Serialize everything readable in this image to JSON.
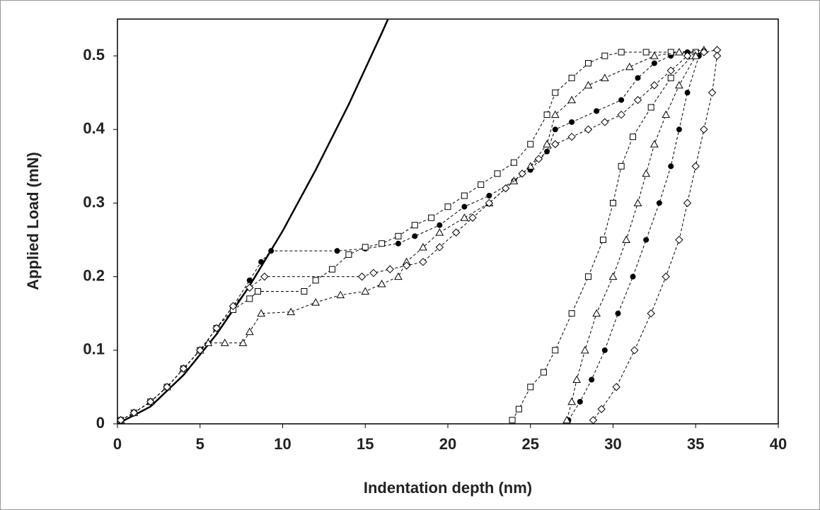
{
  "chart_data": {
    "type": "scatter",
    "xlabel": "Indentation depth (nm)",
    "ylabel": "Applied Load (mN)",
    "xlim": [
      0,
      40
    ],
    "xticks": [
      0,
      5,
      10,
      15,
      20,
      25,
      30,
      35,
      40
    ],
    "ylim": [
      0,
      0.55
    ],
    "yticks": [
      0,
      0.1,
      0.2,
      0.3,
      0.4,
      0.5
    ],
    "series": [
      {
        "color": "#000000",
        "line": "solid",
        "x": [
          0,
          2,
          4,
          6,
          8,
          10,
          12,
          14,
          16,
          16.4
        ],
        "values": [
          0,
          0.0234,
          0.0663,
          0.1218,
          0.1876,
          0.262,
          0.345,
          0.434,
          0.531,
          0.551
        ]
      },
      {
        "color": "#000000",
        "marker": "circle",
        "filled": true,
        "line": "dashed",
        "x": [
          0.2,
          1,
          2,
          3,
          4,
          5,
          6,
          7,
          8,
          8.7,
          9.3,
          13.3,
          15,
          17,
          18,
          19.5,
          21,
          22.5,
          24,
          25,
          26,
          26.5,
          27.5,
          29,
          30.5,
          31.5,
          32.5,
          33.5,
          34.5,
          35.5,
          35.2,
          34.5,
          34,
          33.5,
          32.8,
          32,
          31.2,
          30.3,
          29.5,
          28.7,
          28,
          27.3
        ],
        "values": [
          0.005,
          0.015,
          0.03,
          0.05,
          0.075,
          0.1,
          0.13,
          0.16,
          0.195,
          0.22,
          0.235,
          0.235,
          0.238,
          0.245,
          0.255,
          0.27,
          0.295,
          0.31,
          0.33,
          0.345,
          0.37,
          0.4,
          0.41,
          0.425,
          0.44,
          0.47,
          0.49,
          0.5,
          0.505,
          0.507,
          0.5,
          0.45,
          0.4,
          0.35,
          0.3,
          0.25,
          0.2,
          0.15,
          0.1,
          0.06,
          0.03,
          0.005
        ]
      },
      {
        "color": "#000000",
        "marker": "square",
        "filled": false,
        "line": "dashed",
        "x": [
          0.2,
          1,
          2,
          3,
          4,
          5,
          6,
          7,
          8,
          8.5,
          11.3,
          12,
          13,
          14,
          15,
          16,
          17,
          18,
          19,
          20,
          21,
          22,
          23,
          24,
          25,
          26,
          26.5,
          27.5,
          28.5,
          29.5,
          30.5,
          32,
          33.5,
          35,
          34.8,
          33.5,
          32.3,
          31.2,
          30.5,
          30,
          29.4,
          28.5,
          27.5,
          26.5,
          25.8,
          25,
          24.3,
          23.9
        ],
        "values": [
          0.005,
          0.015,
          0.03,
          0.05,
          0.075,
          0.1,
          0.13,
          0.155,
          0.17,
          0.18,
          0.18,
          0.195,
          0.21,
          0.23,
          0.24,
          0.245,
          0.255,
          0.27,
          0.28,
          0.295,
          0.31,
          0.325,
          0.34,
          0.355,
          0.38,
          0.42,
          0.45,
          0.47,
          0.49,
          0.5,
          0.505,
          0.505,
          0.505,
          0.505,
          0.5,
          0.47,
          0.43,
          0.39,
          0.35,
          0.3,
          0.25,
          0.2,
          0.15,
          0.1,
          0.07,
          0.05,
          0.02,
          0.005
        ]
      },
      {
        "color": "#000000",
        "marker": "triangle",
        "filled": false,
        "line": "dashed",
        "x": [
          0.2,
          1,
          2,
          3,
          4,
          5,
          5.5,
          6.5,
          7.6,
          8,
          8.7,
          10.5,
          12,
          13.5,
          15,
          16,
          17,
          17.5,
          18.5,
          19.5,
          21,
          22.5,
          24,
          25,
          26,
          26.5,
          27.5,
          28.5,
          29.5,
          31,
          32.5,
          34,
          35.5,
          35,
          34,
          33.2,
          32.5,
          32,
          31.5,
          30.8,
          30,
          29,
          28.3,
          27.8,
          27.5,
          27.2
        ],
        "values": [
          0.005,
          0.015,
          0.03,
          0.05,
          0.075,
          0.1,
          0.11,
          0.11,
          0.11,
          0.125,
          0.15,
          0.152,
          0.165,
          0.175,
          0.18,
          0.19,
          0.2,
          0.22,
          0.24,
          0.26,
          0.28,
          0.3,
          0.33,
          0.35,
          0.38,
          0.42,
          0.44,
          0.46,
          0.47,
          0.485,
          0.5,
          0.505,
          0.508,
          0.5,
          0.46,
          0.42,
          0.38,
          0.34,
          0.3,
          0.25,
          0.2,
          0.15,
          0.1,
          0.06,
          0.03,
          0.005
        ]
      },
      {
        "color": "#000000",
        "marker": "diamond",
        "filled": false,
        "line": "dashed",
        "x": [
          0.2,
          1,
          2,
          3,
          4,
          5,
          6,
          7,
          8,
          8.9,
          14.8,
          15.5,
          16.5,
          17.5,
          18.5,
          19.5,
          20.5,
          21.5,
          22.5,
          23.5,
          24.5,
          25.5,
          26.5,
          27.5,
          28.5,
          29.5,
          30.5,
          31.5,
          32.5,
          33.5,
          34.5,
          35.5,
          36.3,
          36.3,
          36,
          35.5,
          35,
          34.5,
          34,
          33.2,
          32.3,
          31.3,
          30.2,
          29.3,
          28.8
        ],
        "values": [
          0.005,
          0.015,
          0.03,
          0.05,
          0.075,
          0.1,
          0.13,
          0.16,
          0.185,
          0.2,
          0.2,
          0.205,
          0.21,
          0.215,
          0.22,
          0.24,
          0.26,
          0.28,
          0.3,
          0.32,
          0.34,
          0.36,
          0.38,
          0.39,
          0.4,
          0.41,
          0.42,
          0.44,
          0.46,
          0.48,
          0.5,
          0.505,
          0.508,
          0.5,
          0.45,
          0.4,
          0.35,
          0.3,
          0.25,
          0.2,
          0.15,
          0.1,
          0.05,
          0.02,
          0.005
        ]
      }
    ]
  }
}
